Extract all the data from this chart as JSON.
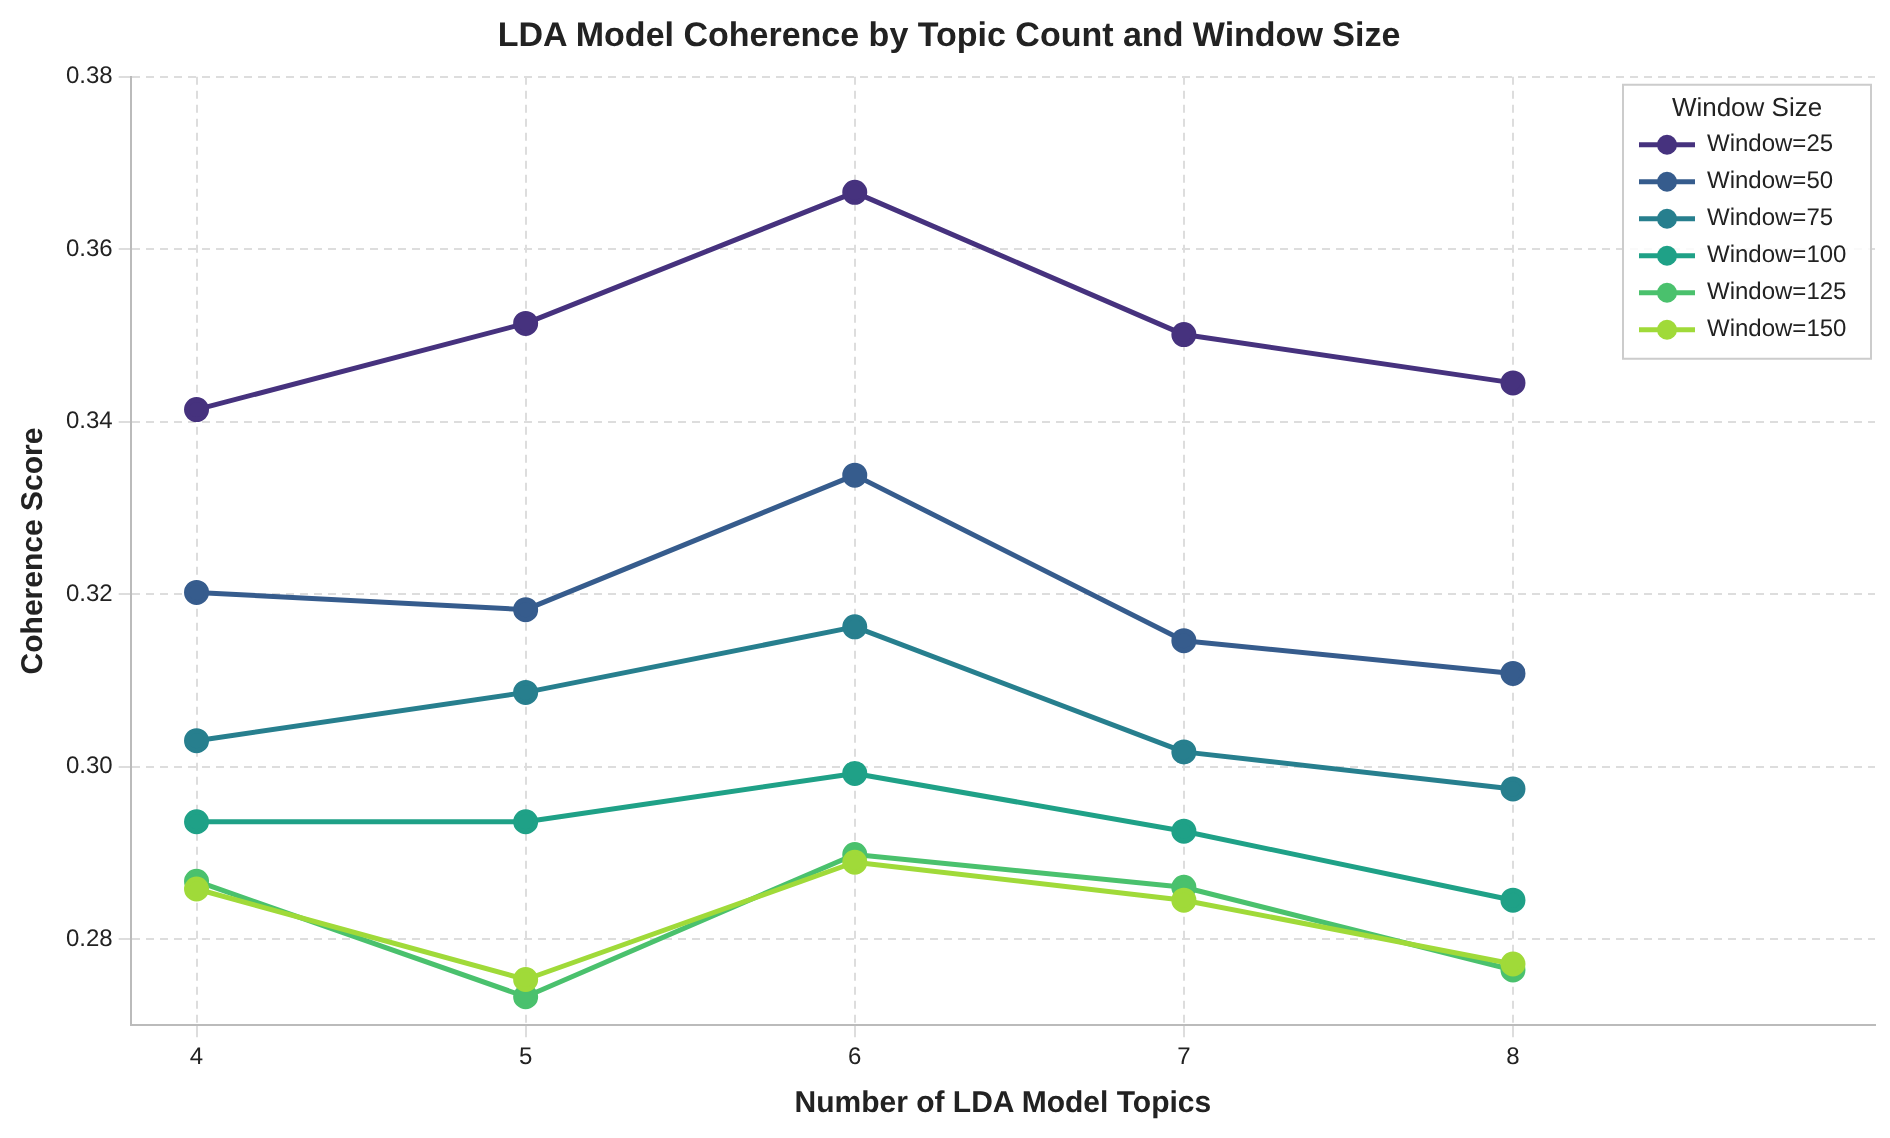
{
  "chart_data": {
    "type": "line",
    "title": "LDA Model Coherence by Topic Count and Window Size",
    "xlabel": "Number of LDA Model Topics",
    "ylabel": "Coherence Score",
    "legend_title": "Window Size",
    "legend": "top right",
    "grid": true,
    "marker": "circle",
    "x": [
      4,
      5,
      6,
      7,
      8
    ],
    "xlim": [
      3.8,
      9.1
    ],
    "xticks": [
      4,
      5,
      6,
      7,
      8
    ],
    "ylim": [
      0.27,
      0.38
    ],
    "yticks": [
      0.28,
      {
        "value": 0.3,
        "label": "0.30"
      },
      0.32,
      0.34,
      0.36,
      0.38
    ],
    "series": [
      {
        "name": "Window=25",
        "color": "#46327e",
        "values": [
          0.3414,
          0.3514,
          0.3666,
          0.3501,
          0.3445
        ]
      },
      {
        "name": "Window=50",
        "color": "#365c8d",
        "values": [
          0.3202,
          0.3182,
          0.3338,
          0.3146,
          0.3108
        ]
      },
      {
        "name": "Window=75",
        "color": "#277f8e",
        "values": [
          0.303,
          0.3086,
          0.3162,
          0.3017,
          0.2974
        ]
      },
      {
        "name": "Window=100",
        "color": "#1fa187",
        "values": [
          0.2936,
          0.2936,
          0.2992,
          0.2925,
          0.2845
        ]
      },
      {
        "name": "Window=125",
        "color": "#4ac16d",
        "values": [
          0.2867,
          0.2733,
          0.2898,
          0.286,
          0.2764
        ]
      },
      {
        "name": "Window=150",
        "color": "#a0da39",
        "values": [
          0.2858,
          0.2753,
          0.2889,
          0.2845,
          0.2771
        ]
      }
    ]
  }
}
